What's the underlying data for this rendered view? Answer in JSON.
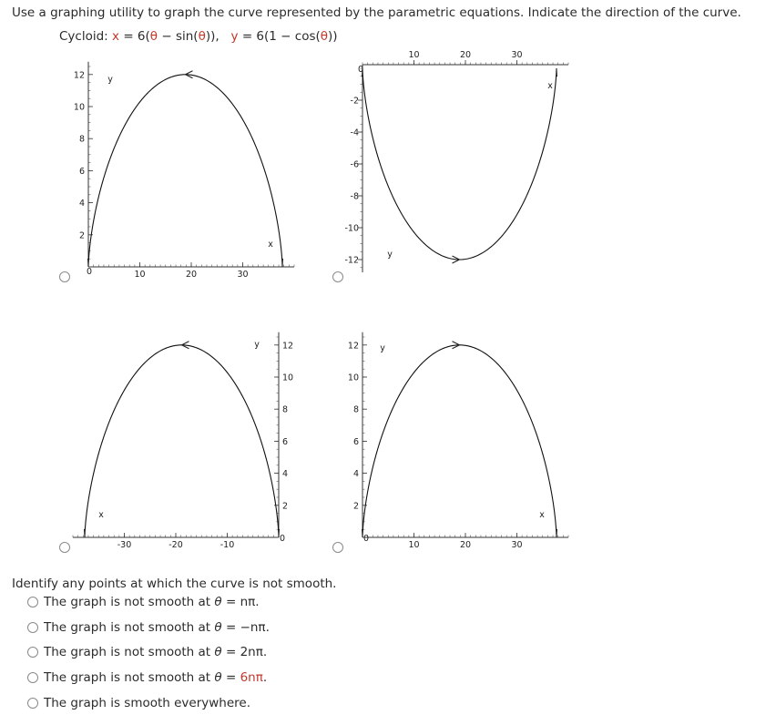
{
  "question": {
    "text": "Use a graphing utility to graph the curve represented by the parametric equations. Indicate the direction of the curve."
  },
  "equation": {
    "name": "Cycloid:",
    "x_label": "x",
    "x_rhs_prefix": "= 6(",
    "theta": "θ",
    "x_rhs_mid": " − sin(",
    "x_rhs_end": ")),",
    "y_label": "y",
    "y_rhs_prefix": "= 6(1 − cos(",
    "y_rhs_end": "))"
  },
  "graphs": [
    {
      "id": "A",
      "axis_x_label": "x",
      "axis_y_label": "y",
      "x_ticks": [
        "10",
        "20",
        "30"
      ],
      "y_ticks": [
        "2",
        "4",
        "6",
        "8",
        "10",
        "12"
      ],
      "origin_label": "0",
      "direction": "right-to-left"
    },
    {
      "id": "B",
      "axis_x_label": "x",
      "axis_y_label": "y",
      "x_ticks": [
        "10",
        "20",
        "30"
      ],
      "y_ticks": [
        "-2",
        "-4",
        "-6",
        "-8",
        "-10",
        "-12"
      ],
      "origin_label": "0",
      "direction": "left-to-right"
    },
    {
      "id": "C",
      "axis_x_label": "x",
      "axis_y_label": "y",
      "x_ticks": [
        "-30",
        "-20",
        "-10"
      ],
      "y_ticks": [
        "2",
        "4",
        "6",
        "8",
        "10",
        "12"
      ],
      "origin_label": "0",
      "direction": "right-to-left"
    },
    {
      "id": "D",
      "axis_x_label": "x",
      "axis_y_label": "y",
      "x_ticks": [
        "10",
        "20",
        "30"
      ],
      "y_ticks": [
        "2",
        "4",
        "6",
        "8",
        "10",
        "12"
      ],
      "origin_label": "0",
      "direction": "left-to-right"
    }
  ],
  "smooth_question": {
    "text": "Identify any points at which the curve is not smooth.",
    "options": [
      {
        "prefix": "The graph is not smooth at ",
        "theta": "θ",
        "eq": " = ",
        "value": "nπ",
        "suffix": ".",
        "value_red": false
      },
      {
        "prefix": "The graph is not smooth at ",
        "theta": "θ",
        "eq": " = ",
        "value": "−nπ",
        "suffix": ".",
        "value_red": false
      },
      {
        "prefix": "The graph is not smooth at ",
        "theta": "θ",
        "eq": " = ",
        "value": "2nπ",
        "suffix": ".",
        "value_red": false
      },
      {
        "prefix": "The graph is not smooth at ",
        "theta": "θ",
        "eq": " = ",
        "value": "6nπ",
        "suffix": ".",
        "value_red": true
      },
      {
        "prefix": "The graph is smooth everywhere.",
        "theta": "",
        "eq": "",
        "value": "",
        "suffix": "",
        "value_red": false
      }
    ]
  }
}
